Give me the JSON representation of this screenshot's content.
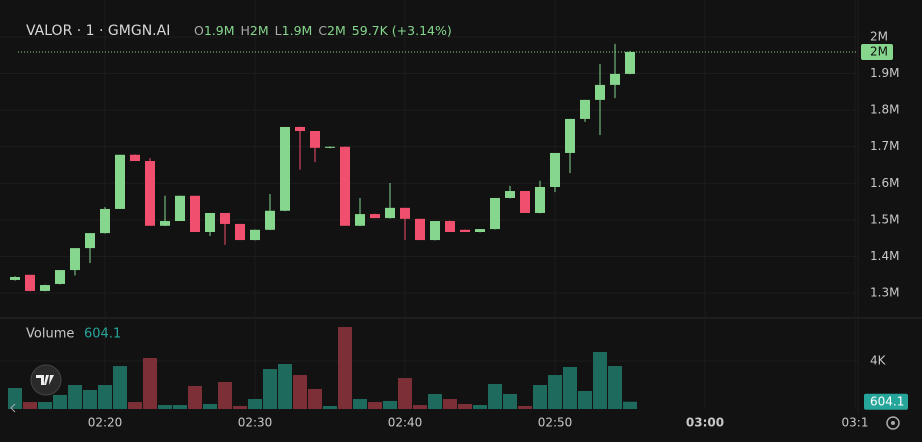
{
  "chart_data": {
    "type": "candlestick",
    "title": "VALOR · 1 · GMGN.AI",
    "legend": {
      "o_label": "O",
      "o": "1.9M",
      "h_label": "H",
      "h": "2M",
      "l_label": "L",
      "l": "1.9M",
      "c_label": "C",
      "c": "2M",
      "change": "59.7K (+3.14%)"
    },
    "open": [
      1336000,
      1350000,
      1306000,
      1325000,
      1363000,
      1423000,
      1464000,
      1530000,
      1678000,
      1661000,
      1484000,
      1497000,
      1566000,
      1467000,
      1519000,
      1489000,
      1445000,
      1473000,
      1525000,
      1754000,
      1743000,
      1697000,
      1700000,
      1484000,
      1516000,
      1505000,
      1533000,
      1503000,
      1445000,
      1497000,
      1473000,
      1467000,
      1475000,
      1560000,
      1579000,
      1519000,
      1590000,
      1683000,
      1776000,
      1828000,
      1869000,
      1899000
    ],
    "high": [
      1346000,
      1350000,
      1323000,
      1363000,
      1423000,
      1464000,
      1535000,
      1678000,
      1679000,
      1669000,
      1566000,
      1566000,
      1566000,
      1519000,
      1519000,
      1490000,
      1473000,
      1571000,
      1754000,
      1755000,
      1743000,
      1701000,
      1700000,
      1560000,
      1517000,
      1601000,
      1533000,
      1503000,
      1497000,
      1498000,
      1474000,
      1475000,
      1560000,
      1593000,
      1579000,
      1607000,
      1683000,
      1776000,
      1828000,
      1926000,
      1981000,
      1962000
    ],
    "low": [
      1334000,
      1305000,
      1305000,
      1324000,
      1348000,
      1382000,
      1463000,
      1530000,
      1661000,
      1484000,
      1483000,
      1497000,
      1467000,
      1456000,
      1432000,
      1445000,
      1444000,
      1472000,
      1524000,
      1637000,
      1658000,
      1696000,
      1484000,
      1483000,
      1505000,
      1504000,
      1445000,
      1445000,
      1444000,
      1467000,
      1467000,
      1466000,
      1474000,
      1559000,
      1519000,
      1518000,
      1576000,
      1628000,
      1768000,
      1732000,
      1833000,
      1898000
    ],
    "close": [
      1344000,
      1306000,
      1322000,
      1363000,
      1423000,
      1464000,
      1530000,
      1678000,
      1661000,
      1484000,
      1497000,
      1566000,
      1467000,
      1519000,
      1489000,
      1445000,
      1473000,
      1525000,
      1754000,
      1743000,
      1697000,
      1700000,
      1484000,
      1516000,
      1505000,
      1533000,
      1503000,
      1445000,
      1497000,
      1467000,
      1467000,
      1475000,
      1560000,
      1579000,
      1519000,
      1590000,
      1683000,
      1776000,
      1828000,
      1869000,
      1899000,
      1959000
    ],
    "last_price_label": "2M",
    "ylim": [
      1232000,
      2060000
    ],
    "yticks": [
      {
        "value": 1300000,
        "label": "1.3M"
      },
      {
        "value": 1400000,
        "label": "1.4M"
      },
      {
        "value": 1500000,
        "label": "1.5M"
      },
      {
        "value": 1600000,
        "label": "1.6M"
      },
      {
        "value": 1700000,
        "label": "1.7M"
      },
      {
        "value": 1800000,
        "label": "1.8M"
      },
      {
        "value": 1900000,
        "label": "1.9M"
      },
      {
        "value": 2000000,
        "label": "2M"
      }
    ],
    "volume_title": "Volume",
    "volume": [
      1750,
      580,
      580,
      1170,
      2000,
      1580,
      2000,
      3580,
      580,
      4250,
      330,
      330,
      1920,
      420,
      2250,
      250,
      830,
      3330,
      3750,
      2830,
      1670,
      250,
      6830,
      830,
      580,
      670,
      2580,
      330,
      1250,
      830,
      420,
      330,
      2080,
      1250,
      250,
      2000,
      2830,
      3500,
      1500,
      4750,
      3580,
      604.1
    ],
    "volume_ylim": [
      0,
      8000
    ],
    "volume_yticks": [
      {
        "value": 4000,
        "label": "4K"
      }
    ],
    "xticks": [
      "02:20",
      "02:30",
      "02:40",
      "02:50",
      "03:00",
      "03:1"
    ],
    "up_color": "#86d68d",
    "down_color": "#f0506e",
    "volume_up_color": "#1e6b5e",
    "volume_down_color": "#7c2f37",
    "grid": true
  }
}
